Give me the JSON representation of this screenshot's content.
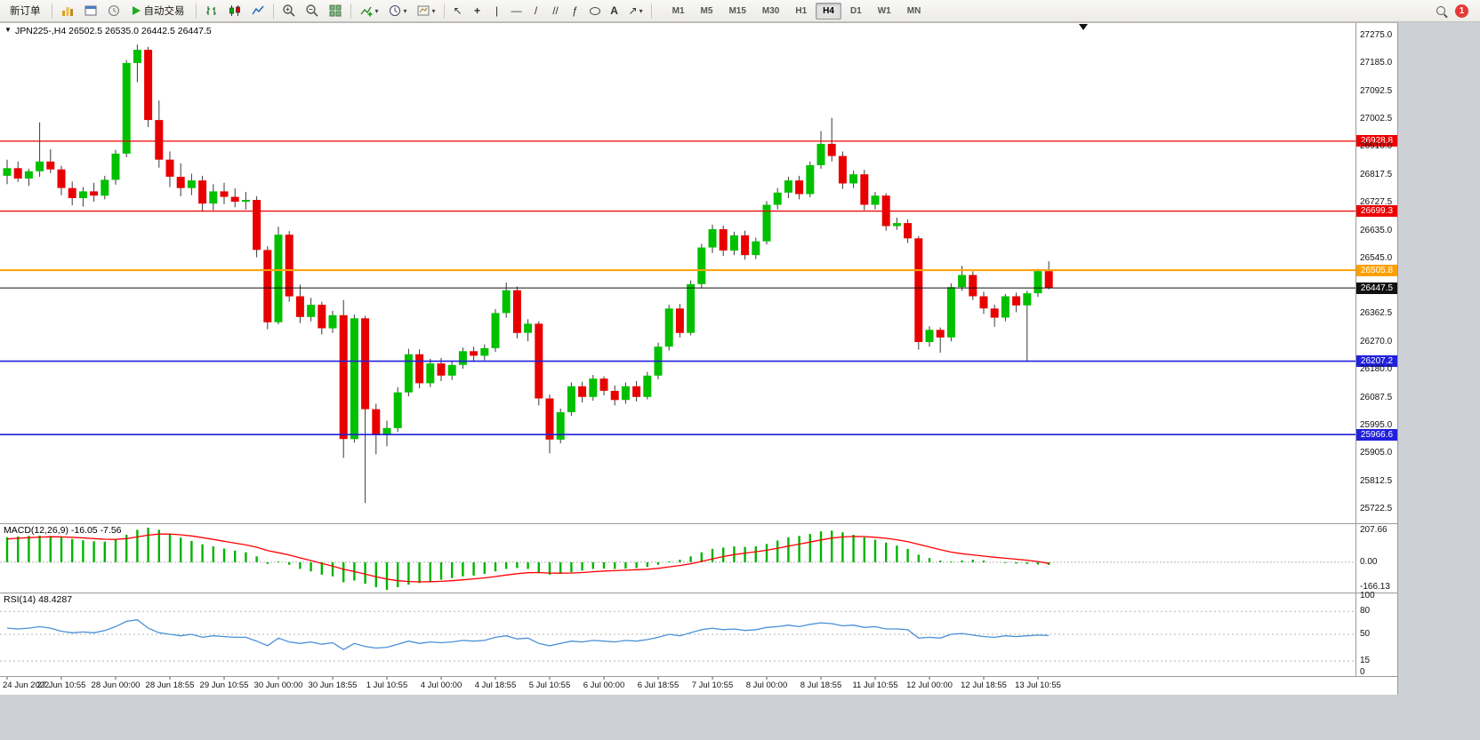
{
  "toolbar": {
    "new_order_label": "新订单",
    "autotrading_label": "自动交易",
    "timeframes": [
      "M1",
      "M5",
      "M15",
      "M30",
      "H1",
      "H4",
      "D1",
      "W1",
      "MN"
    ],
    "active_timeframe": "H4",
    "notification_count": "1"
  },
  "icons": {
    "one_click": "▼",
    "cursor": "↖",
    "crosshair": "+",
    "vertical_line": "|",
    "horizontal_line": "—",
    "trendline": "/",
    "channel": "//",
    "fibonacci": "ƒ",
    "text": "A",
    "arrows": "↗",
    "dropdown": "▾"
  },
  "chart": {
    "symbol_period": "JPN225-,H4",
    "ohlc": "26502.5 26535.0 26442.5 26447.5"
  },
  "chart_data": {
    "type": "candlestick",
    "symbol": "JPN225-",
    "period": "H4",
    "current_ohlc": {
      "open": 26502.5,
      "high": 26535.0,
      "low": 26442.5,
      "close": 26447.5
    },
    "price_range": {
      "max": 27275.0,
      "min": 25722.5
    },
    "colors": {
      "up": "#00c000",
      "down": "#e80000",
      "wick": "#3a3a3a",
      "macd_histogram": "#00b400",
      "macd_signal": "#ff0000",
      "rsi": "#4a90d8"
    },
    "y_axis_ticks": [
      "27275.0",
      "27185.0",
      "27092.5",
      "27002.5",
      "26910.0",
      "26817.5",
      "26727.5",
      "26635.0",
      "26545.0",
      "26362.5",
      "26270.0",
      "26180.0",
      "26087.5",
      "25995.0",
      "25905.0",
      "25812.5",
      "25722.5"
    ],
    "h_lines": [
      {
        "price": 26928.8,
        "color": "#ee0000",
        "label": "26928.8",
        "width": 1.3
      },
      {
        "price": 26699.3,
        "color": "#ee0000",
        "label": "26699.3",
        "width": 1.3
      },
      {
        "price": 26505.8,
        "color": "#ffa000",
        "label": "26505.8",
        "width": 2
      },
      {
        "price": 26447.5,
        "color": "#111111",
        "label": "26447.5",
        "width": 1
      },
      {
        "price": 26207.2,
        "color": "#2020dd",
        "label": "26207.2",
        "width": 1.6
      },
      {
        "price": 25966.6,
        "color": "#2020dd",
        "label": "25966.6",
        "width": 1.6
      }
    ],
    "x_labels": [
      "24 Jun 2022",
      "27 Jun 10:55",
      "28 Jun 00:00",
      "28 Jun 18:55",
      "29 Jun 10:55",
      "30 Jun 00:00",
      "30 Jun 18:55",
      "1 Jul 10:55",
      "4 Jul 00:00",
      "4 Jul 18:55",
      "5 Jul 10:55",
      "6 Jul 00:00",
      "6 Jul 18:55",
      "7 Jul 10:55",
      "8 Jul 00:00",
      "8 Jul 18:55",
      "11 Jul 10:55",
      "12 Jul 00:00",
      "12 Jul 18:55",
      "13 Jul 10:55"
    ],
    "candles": [
      [
        26815,
        26868,
        26788,
        26840
      ],
      [
        26840,
        26862,
        26795,
        26806
      ],
      [
        26806,
        26838,
        26782,
        26830
      ],
      [
        26830,
        26990,
        26812,
        26862
      ],
      [
        26862,
        26902,
        26824,
        26836
      ],
      [
        26836,
        26848,
        26752,
        26775
      ],
      [
        26775,
        26796,
        26718,
        26742
      ],
      [
        26742,
        26778,
        26714,
        26764
      ],
      [
        26764,
        26792,
        26730,
        26750
      ],
      [
        26750,
        26815,
        26738,
        26802
      ],
      [
        26802,
        26900,
        26786,
        26888
      ],
      [
        26888,
        27195,
        26876,
        27185
      ],
      [
        27185,
        27245,
        27122,
        27228
      ],
      [
        27228,
        27238,
        26975,
        26998
      ],
      [
        26998,
        27062,
        26842,
        26868
      ],
      [
        26868,
        26895,
        26778,
        26812
      ],
      [
        26812,
        26856,
        26748,
        26775
      ],
      [
        26775,
        26822,
        26752,
        26800
      ],
      [
        26800,
        26815,
        26698,
        26724
      ],
      [
        26724,
        26788,
        26702,
        26764
      ],
      [
        26764,
        26792,
        26722,
        26746
      ],
      [
        26746,
        26774,
        26712,
        26730
      ],
      [
        26730,
        26762,
        26704,
        26736
      ],
      [
        26736,
        26748,
        26548,
        26572
      ],
      [
        26572,
        26584,
        26312,
        26335
      ],
      [
        26335,
        26648,
        26328,
        26622
      ],
      [
        26622,
        26634,
        26402,
        26420
      ],
      [
        26420,
        26458,
        26332,
        26352
      ],
      [
        26352,
        26415,
        26338,
        26392
      ],
      [
        26392,
        26402,
        26295,
        26315
      ],
      [
        26315,
        26372,
        26300,
        26358
      ],
      [
        26358,
        26408,
        25890,
        25952
      ],
      [
        25952,
        26360,
        25940,
        26348
      ],
      [
        26348,
        26356,
        25742,
        26050
      ],
      [
        26050,
        26068,
        25902,
        25965
      ],
      [
        25965,
        26012,
        25928,
        25988
      ],
      [
        25988,
        26122,
        25975,
        26105
      ],
      [
        26105,
        26248,
        26092,
        26230
      ],
      [
        26230,
        26246,
        26118,
        26135
      ],
      [
        26135,
        26215,
        26122,
        26200
      ],
      [
        26200,
        26218,
        26142,
        26160
      ],
      [
        26160,
        26208,
        26146,
        26195
      ],
      [
        26195,
        26252,
        26182,
        26240
      ],
      [
        26240,
        26255,
        26205,
        26225
      ],
      [
        26225,
        26262,
        26210,
        26250
      ],
      [
        26250,
        26378,
        26238,
        26365
      ],
      [
        26365,
        26465,
        26350,
        26440
      ],
      [
        26440,
        26452,
        26282,
        26300
      ],
      [
        26300,
        26345,
        26272,
        26330
      ],
      [
        26330,
        26338,
        26062,
        26085
      ],
      [
        26085,
        26098,
        25905,
        25950
      ],
      [
        25950,
        26052,
        25938,
        26040
      ],
      [
        26040,
        26138,
        26028,
        26125
      ],
      [
        26125,
        26140,
        26072,
        26090
      ],
      [
        26090,
        26162,
        26078,
        26150
      ],
      [
        26150,
        26158,
        26095,
        26110
      ],
      [
        26110,
        26128,
        26062,
        26080
      ],
      [
        26080,
        26138,
        26068,
        26125
      ],
      [
        26125,
        26142,
        26075,
        26090
      ],
      [
        26090,
        26172,
        26082,
        26160
      ],
      [
        26160,
        26268,
        26148,
        26255
      ],
      [
        26255,
        26392,
        26242,
        26380
      ],
      [
        26380,
        26395,
        26285,
        26300
      ],
      [
        26300,
        26472,
        26292,
        26460
      ],
      [
        26460,
        26592,
        26448,
        26580
      ],
      [
        26580,
        26655,
        26562,
        26640
      ],
      [
        26640,
        26652,
        26552,
        26570
      ],
      [
        26570,
        26632,
        26555,
        26620
      ],
      [
        26620,
        26635,
        26540,
        26555
      ],
      [
        26555,
        26612,
        26542,
        26600
      ],
      [
        26600,
        26732,
        26590,
        26720
      ],
      [
        26720,
        26775,
        26705,
        26760
      ],
      [
        26760,
        26812,
        26742,
        26800
      ],
      [
        26800,
        26815,
        26738,
        26755
      ],
      [
        26755,
        26862,
        26745,
        26850
      ],
      [
        26850,
        26962,
        26838,
        26920
      ],
      [
        26920,
        27005,
        26862,
        26880
      ],
      [
        26880,
        26895,
        26772,
        26790
      ],
      [
        26790,
        26832,
        26775,
        26820
      ],
      [
        26820,
        26835,
        26702,
        26720
      ],
      [
        26720,
        26762,
        26705,
        26750
      ],
      [
        26750,
        26758,
        26635,
        26650
      ],
      [
        26650,
        26678,
        26638,
        26660
      ],
      [
        26660,
        26672,
        26595,
        26610
      ],
      [
        26610,
        26618,
        26245,
        26270
      ],
      [
        26270,
        26322,
        26255,
        26310
      ],
      [
        26310,
        26318,
        26235,
        26285
      ],
      [
        26285,
        26462,
        26272,
        26450
      ],
      [
        26450,
        26520,
        26438,
        26490
      ],
      [
        26490,
        26502,
        26408,
        26420
      ],
      [
        26420,
        26435,
        26362,
        26380
      ],
      [
        26380,
        26392,
        26320,
        26350
      ],
      [
        26350,
        26428,
        26338,
        26420
      ],
      [
        26420,
        26432,
        26368,
        26390
      ],
      [
        26390,
        26438,
        26205,
        26430
      ],
      [
        26430,
        26510,
        26418,
        26502.5
      ],
      [
        26502.5,
        26535,
        26442.5,
        26447.5
      ]
    ],
    "macd": {
      "label": "MACD(12,26,9)",
      "values_text": "-16.05 -7.56",
      "scale": {
        "max": 207.66,
        "min": -166.13
      },
      "scale_labels": [
        "207.66",
        "0.00",
        "-166.13"
      ],
      "histogram": [
        150,
        155,
        158,
        160,
        158,
        150,
        140,
        132,
        126,
        124,
        135,
        165,
        195,
        207.66,
        195,
        170,
        148,
        128,
        108,
        95,
        82,
        70,
        60,
        35,
        -10,
        5,
        -15,
        -40,
        -55,
        -75,
        -85,
        -120,
        -110,
        -130,
        -150,
        -166.13,
        -150,
        -135,
        -125,
        -115,
        -105,
        -95,
        -85,
        -80,
        -70,
        -55,
        -40,
        -35,
        -40,
        -60,
        -75,
        -70,
        -60,
        -50,
        -40,
        -38,
        -40,
        -38,
        -35,
        -28,
        -15,
        5,
        15,
        35,
        60,
        80,
        88,
        95,
        92,
        95,
        110,
        130,
        150,
        158,
        170,
        185,
        190,
        180,
        165,
        150,
        135,
        118,
        100,
        80,
        45,
        25,
        10,
        5,
        10,
        15,
        10,
        0,
        -5,
        -8,
        -10,
        -14,
        -16.05
      ],
      "signal": [
        140,
        144,
        148,
        151,
        153,
        152,
        150,
        146,
        142,
        138,
        137,
        142,
        152,
        163,
        169,
        169,
        165,
        158,
        148,
        137,
        126,
        115,
        104,
        90,
        70,
        57,
        43,
        26,
        10,
        -7,
        -23,
        -42,
        -56,
        -71,
        -87,
        -101,
        -111,
        -116,
        -118,
        -117,
        -115,
        -111,
        -106,
        -100,
        -94,
        -86,
        -77,
        -69,
        -63,
        -62,
        -65,
        -66,
        -65,
        -62,
        -57,
        -53,
        -51,
        -48,
        -45,
        -42,
        -37,
        -28,
        -20,
        -9,
        5,
        20,
        34,
        46,
        55,
        63,
        72,
        84,
        97,
        109,
        121,
        134,
        145,
        152,
        155,
        154,
        150,
        144,
        135,
        124,
        108,
        91,
        75,
        61,
        51,
        44,
        37,
        30,
        24,
        18,
        12,
        4,
        -7.56
      ]
    },
    "rsi": {
      "label": "RSI(14)",
      "value": "48.4287",
      "levels": [
        80,
        50,
        15
      ],
      "scale": {
        "max": 100,
        "min": 0
      },
      "scale_labels": [
        "100",
        "80",
        "50",
        "15",
        "0"
      ],
      "values": [
        58,
        57,
        58,
        60,
        58,
        54,
        52,
        53,
        52,
        55,
        60,
        67,
        69,
        58,
        52,
        50,
        48,
        50,
        46,
        48,
        47,
        46,
        46,
        41,
        35,
        45,
        40,
        38,
        40,
        37,
        39,
        30,
        38,
        34,
        32,
        33,
        37,
        41,
        38,
        40,
        39,
        40,
        42,
        41,
        42,
        46,
        48,
        44,
        45,
        38,
        35,
        38,
        41,
        40,
        42,
        41,
        40,
        42,
        41,
        43,
        46,
        50,
        48,
        52,
        56,
        58,
        56,
        57,
        55,
        56,
        59,
        60,
        62,
        60,
        63,
        65,
        64,
        61,
        62,
        59,
        60,
        57,
        57,
        56,
        45,
        46,
        45,
        50,
        51,
        49,
        47,
        46,
        48,
        47,
        48,
        49,
        48.4287
      ]
    }
  }
}
